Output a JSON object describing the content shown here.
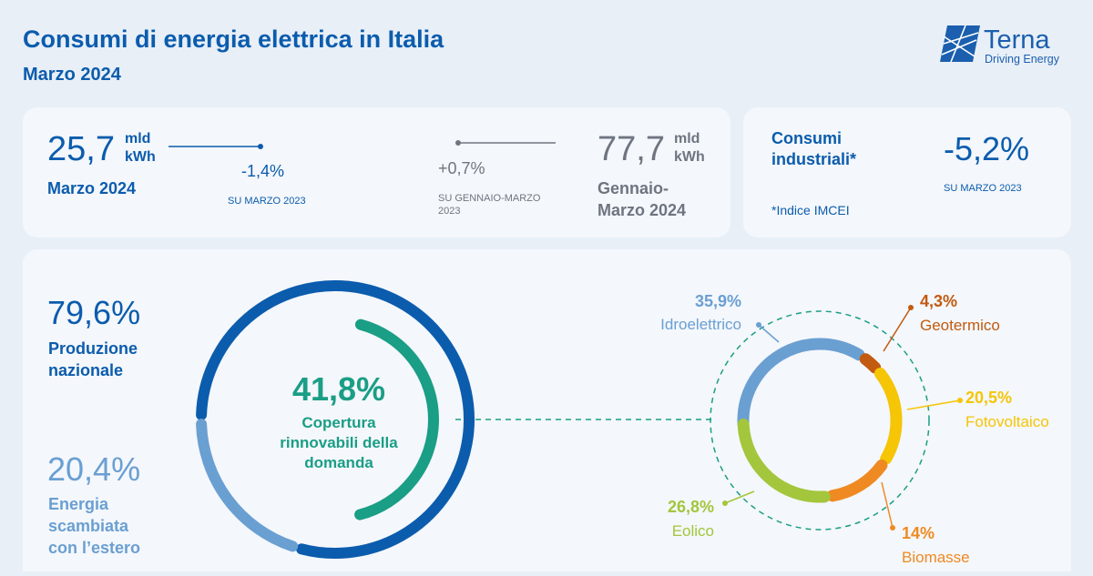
{
  "header": {
    "title": "Consumi di energia elettrica in Italia",
    "subtitle": "Marzo 2024",
    "logo_name": "Terna",
    "logo_tagline": "Driving Energy"
  },
  "kpis": {
    "monthly": {
      "value": "25,7",
      "unit_1": "mld",
      "unit_2": "kWh",
      "period": "Marzo 2024",
      "change": "-1,4%",
      "change_ref": "SU MARZO 2023"
    },
    "year_to_date": {
      "value": "77,7",
      "unit_1": "mld",
      "unit_2": "kWh",
      "period_1": "Gennaio-",
      "period_2": "Marzo 2024",
      "change": "+0,7%",
      "change_ref_1": "SU GENNAIO-MARZO",
      "change_ref_2": "2023"
    },
    "industrial": {
      "label_1": "Consumi",
      "label_2": "industriali*",
      "value": "-5,2%",
      "change_ref": "SU MARZO 2023",
      "note": "*Indice IMCEI"
    }
  },
  "supply": {
    "national": {
      "value": 79.6,
      "label": "79,6%"
    },
    "national_text_1": "Produzione",
    "national_text_2": "nazionale",
    "exchange": {
      "value": 20.4,
      "label": "20,4%"
    },
    "exchange_text_1": "Energia",
    "exchange_text_2": "scambiata",
    "exchange_text_3": "con l’estero",
    "renewables": {
      "value": 41.8,
      "label": "41,8%"
    },
    "renewables_text_1": "Copertura",
    "renewables_text_2": "rinnovabili della",
    "renewables_text_3": "domanda"
  },
  "renewable_mix": [
    {
      "name": "Idroelettrico",
      "value": 35.9,
      "label": "35,9%",
      "color": "#6a9fd2"
    },
    {
      "name": "Geotermico",
      "value": 4.3,
      "label": "4,3%",
      "color": "#c25a10"
    },
    {
      "name": "Fotovoltaico",
      "value": 20.5,
      "label": "20,5%",
      "color": "#f5c506"
    },
    {
      "name": "Biomasse",
      "value": 14,
      "label": "14%",
      "color": "#ef8a22"
    },
    {
      "name": "Eolico",
      "value": 26.8,
      "label": "26,8%",
      "color": "#a3c63c"
    }
  ]
}
